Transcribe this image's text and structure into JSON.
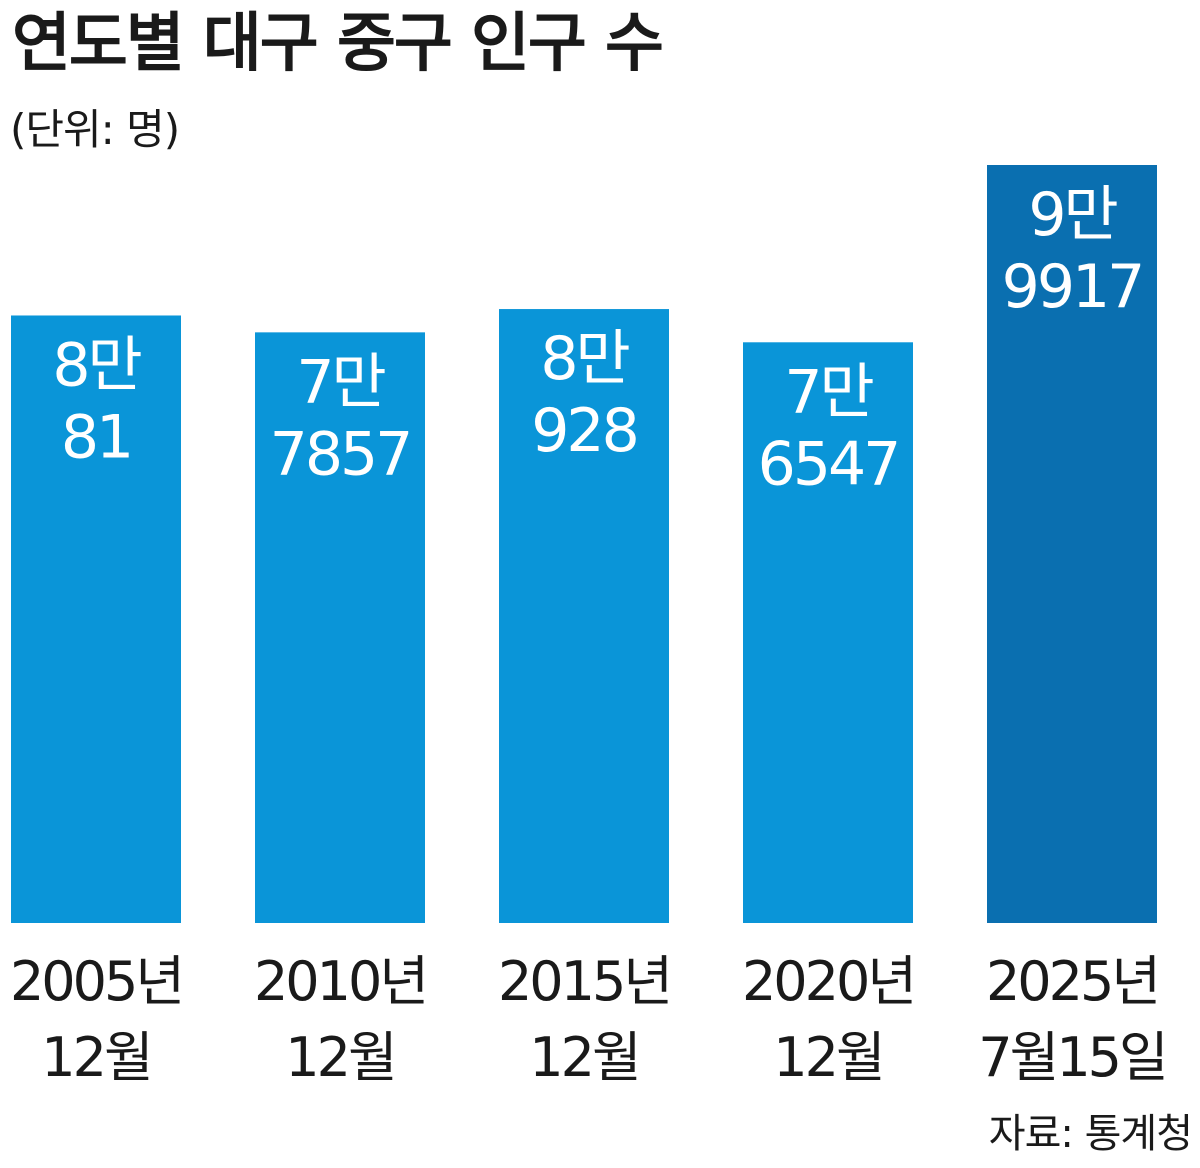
{
  "title": "연도별 대구 중구 인구 수",
  "unit": "(단위: 명)",
  "source": "자료: 통계청",
  "chart_data": {
    "type": "bar",
    "title": "연도별 대구 중구 인구 수",
    "ylabel": "(단위: 명)",
    "categories": [
      [
        "2005년",
        "12월"
      ],
      [
        "2010년",
        "12월"
      ],
      [
        "2015년",
        "12월"
      ],
      [
        "2020년",
        "12월"
      ],
      [
        "2025년",
        "7월15일"
      ]
    ],
    "values": [
      80081,
      77857,
      80928,
      76547,
      99917
    ],
    "value_labels": [
      [
        "8만",
        "81"
      ],
      [
        "7만",
        "7857"
      ],
      [
        "8만",
        "928"
      ],
      [
        "7만",
        "6547"
      ],
      [
        "9만",
        "9917"
      ]
    ],
    "colors": [
      "#0a95d8",
      "#0a95d8",
      "#0a95d8",
      "#0a95d8",
      "#0a6fb0"
    ],
    "grid": false,
    "legend": "none"
  }
}
